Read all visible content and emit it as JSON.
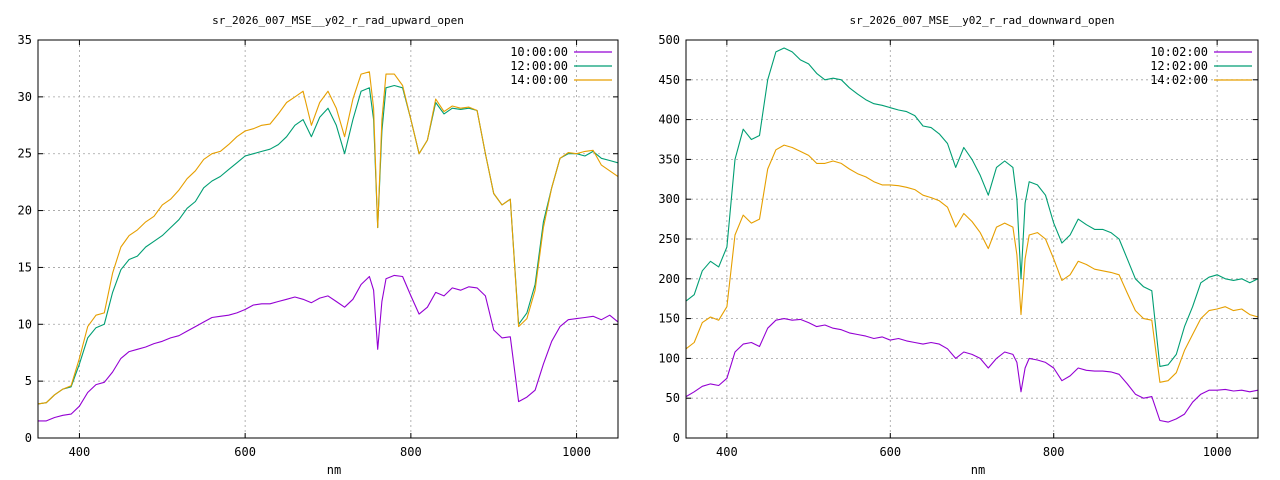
{
  "colors": {
    "series_10": "#9400d3",
    "series_12": "#009e73",
    "series_14": "#e69f00",
    "grid": "#a0a0a0"
  },
  "chart_data": [
    {
      "type": "line",
      "title": "sr_2026_007_MSE__y02_r_rad_upward_open",
      "xlabel": "nm",
      "ylabel": "",
      "xlim": [
        350,
        1050
      ],
      "ylim": [
        0,
        35
      ],
      "xticks": [
        400,
        600,
        800,
        1000
      ],
      "yticks": [
        0,
        5,
        10,
        15,
        20,
        25,
        30,
        35
      ],
      "grid": true,
      "legend_position": "top-right",
      "series": [
        {
          "name": "10:00:00",
          "color": "#9400d3",
          "x": [
            350,
            360,
            370,
            380,
            390,
            400,
            410,
            420,
            430,
            440,
            450,
            460,
            470,
            480,
            490,
            500,
            510,
            520,
            530,
            540,
            550,
            560,
            570,
            580,
            590,
            600,
            610,
            620,
            630,
            640,
            650,
            660,
            670,
            680,
            690,
            700,
            710,
            720,
            730,
            740,
            750,
            755,
            760,
            765,
            770,
            780,
            790,
            800,
            810,
            820,
            830,
            840,
            850,
            860,
            870,
            880,
            890,
            900,
            910,
            920,
            930,
            940,
            950,
            960,
            970,
            980,
            990,
            1000,
            1010,
            1020,
            1030,
            1040,
            1050
          ],
          "y": [
            1.5,
            1.5,
            1.8,
            2.0,
            2.1,
            2.8,
            4.0,
            4.7,
            4.9,
            5.8,
            7.0,
            7.6,
            7.8,
            8.0,
            8.3,
            8.5,
            8.8,
            9.0,
            9.4,
            9.8,
            10.2,
            10.6,
            10.7,
            10.8,
            11.0,
            11.3,
            11.7,
            11.8,
            11.8,
            12.0,
            12.2,
            12.4,
            12.2,
            11.9,
            12.3,
            12.5,
            12.0,
            11.5,
            12.2,
            13.5,
            14.2,
            13.0,
            7.8,
            12.0,
            14.0,
            14.3,
            14.2,
            12.5,
            10.9,
            11.5,
            12.8,
            12.5,
            13.2,
            13.0,
            13.3,
            13.2,
            12.5,
            9.5,
            8.8,
            8.9,
            3.2,
            3.6,
            4.2,
            6.5,
            8.5,
            9.8,
            10.4,
            10.5,
            10.6,
            10.7,
            10.4,
            10.8,
            10.2
          ]
        },
        {
          "name": "12:00:00",
          "color": "#009e73",
          "x": [
            350,
            360,
            370,
            380,
            390,
            400,
            410,
            420,
            430,
            440,
            450,
            460,
            470,
            480,
            490,
            500,
            510,
            520,
            530,
            540,
            550,
            560,
            570,
            580,
            590,
            600,
            610,
            620,
            630,
            640,
            650,
            660,
            670,
            680,
            690,
            700,
            710,
            720,
            730,
            740,
            750,
            755,
            760,
            765,
            770,
            780,
            790,
            800,
            810,
            820,
            830,
            840,
            850,
            860,
            870,
            880,
            890,
            900,
            910,
            920,
            930,
            940,
            950,
            960,
            970,
            980,
            990,
            1000,
            1010,
            1020,
            1030,
            1040,
            1050
          ],
          "y": [
            3.0,
            3.1,
            3.8,
            4.3,
            4.5,
            6.5,
            8.8,
            9.7,
            10.0,
            12.8,
            14.8,
            15.7,
            16.0,
            16.8,
            17.3,
            17.8,
            18.5,
            19.2,
            20.2,
            20.8,
            22.0,
            22.6,
            23.0,
            23.6,
            24.2,
            24.8,
            25.0,
            25.2,
            25.4,
            25.8,
            26.5,
            27.5,
            28.0,
            26.5,
            28.2,
            29.0,
            27.5,
            25.0,
            28.0,
            30.5,
            30.8,
            28.0,
            18.5,
            27.0,
            30.8,
            31.0,
            30.8,
            28.0,
            25.0,
            26.2,
            29.5,
            28.5,
            29.0,
            28.9,
            29.0,
            28.8,
            25.0,
            21.5,
            20.5,
            21.0,
            10.0,
            11.0,
            13.5,
            19.0,
            22.0,
            24.6,
            25.0,
            25.0,
            24.8,
            25.2,
            24.6,
            24.4,
            24.2
          ]
        },
        {
          "name": "14:00:00",
          "color": "#e69f00",
          "x": [
            350,
            360,
            370,
            380,
            390,
            400,
            410,
            420,
            430,
            440,
            450,
            460,
            470,
            480,
            490,
            500,
            510,
            520,
            530,
            540,
            550,
            560,
            570,
            580,
            590,
            600,
            610,
            620,
            630,
            640,
            650,
            660,
            670,
            680,
            690,
            700,
            710,
            720,
            730,
            740,
            750,
            755,
            760,
            765,
            770,
            780,
            790,
            800,
            810,
            820,
            830,
            840,
            850,
            860,
            870,
            880,
            890,
            900,
            910,
            920,
            930,
            940,
            950,
            960,
            970,
            980,
            990,
            1000,
            1010,
            1020,
            1030,
            1040,
            1050
          ],
          "y": [
            3.0,
            3.1,
            3.8,
            4.3,
            4.6,
            7.0,
            9.8,
            10.8,
            11.0,
            14.5,
            16.8,
            17.8,
            18.3,
            19.0,
            19.5,
            20.5,
            21.0,
            21.8,
            22.8,
            23.5,
            24.5,
            25.0,
            25.2,
            25.8,
            26.5,
            27.0,
            27.2,
            27.5,
            27.6,
            28.5,
            29.5,
            30.0,
            30.5,
            27.5,
            29.5,
            30.5,
            29.0,
            26.5,
            29.8,
            32.0,
            32.2,
            29.0,
            18.5,
            28.0,
            32.0,
            32.0,
            31.0,
            28.0,
            25.0,
            26.2,
            29.8,
            28.7,
            29.2,
            29.0,
            29.1,
            28.8,
            25.0,
            21.5,
            20.5,
            21.0,
            9.8,
            10.5,
            13.0,
            18.5,
            22.0,
            24.6,
            25.1,
            25.0,
            25.2,
            25.3,
            24.0,
            23.5,
            23.0
          ]
        }
      ]
    },
    {
      "type": "line",
      "title": "sr_2026_007_MSE__y02_r_rad_downward_open",
      "xlabel": "nm",
      "ylabel": "",
      "xlim": [
        350,
        1050
      ],
      "ylim": [
        0,
        500
      ],
      "xticks": [
        400,
        600,
        800,
        1000
      ],
      "yticks": [
        0,
        50,
        100,
        150,
        200,
        250,
        300,
        350,
        400,
        450,
        500
      ],
      "grid": true,
      "legend_position": "top-right",
      "series": [
        {
          "name": "10:02:00",
          "color": "#9400d3",
          "x": [
            350,
            360,
            370,
            380,
            390,
            400,
            410,
            420,
            430,
            440,
            450,
            460,
            470,
            480,
            490,
            500,
            510,
            520,
            530,
            540,
            550,
            560,
            570,
            580,
            590,
            600,
            610,
            620,
            630,
            640,
            650,
            660,
            670,
            680,
            690,
            700,
            710,
            720,
            730,
            740,
            750,
            755,
            760,
            765,
            770,
            780,
            790,
            800,
            810,
            820,
            830,
            840,
            850,
            860,
            870,
            880,
            890,
            900,
            910,
            920,
            930,
            940,
            950,
            960,
            970,
            980,
            990,
            1000,
            1010,
            1020,
            1030,
            1040,
            1050
          ],
          "y": [
            52,
            58,
            65,
            68,
            66,
            75,
            108,
            118,
            120,
            115,
            138,
            148,
            150,
            148,
            149,
            145,
            140,
            142,
            138,
            136,
            132,
            130,
            128,
            125,
            127,
            123,
            125,
            122,
            120,
            118,
            120,
            118,
            112,
            100,
            108,
            105,
            100,
            88,
            100,
            108,
            105,
            95,
            58,
            88,
            100,
            98,
            95,
            88,
            72,
            78,
            88,
            85,
            84,
            84,
            83,
            80,
            68,
            55,
            50,
            52,
            22,
            20,
            24,
            30,
            45,
            55,
            60,
            60,
            61,
            59,
            60,
            58,
            60
          ]
        },
        {
          "name": "12:02:00",
          "color": "#009e73",
          "x": [
            350,
            360,
            370,
            380,
            390,
            400,
            410,
            420,
            430,
            440,
            450,
            460,
            470,
            480,
            490,
            500,
            510,
            520,
            530,
            540,
            550,
            560,
            570,
            580,
            590,
            600,
            610,
            620,
            630,
            640,
            650,
            660,
            670,
            680,
            690,
            700,
            710,
            720,
            730,
            740,
            750,
            755,
            760,
            765,
            770,
            780,
            790,
            800,
            810,
            820,
            830,
            840,
            850,
            860,
            870,
            880,
            890,
            900,
            910,
            920,
            930,
            940,
            950,
            960,
            970,
            980,
            990,
            1000,
            1010,
            1020,
            1030,
            1040,
            1050
          ],
          "y": [
            172,
            180,
            210,
            222,
            215,
            240,
            350,
            388,
            375,
            380,
            450,
            485,
            490,
            485,
            475,
            470,
            458,
            450,
            452,
            450,
            440,
            432,
            425,
            420,
            418,
            415,
            412,
            410,
            405,
            392,
            390,
            382,
            370,
            340,
            365,
            350,
            330,
            305,
            340,
            348,
            340,
            300,
            200,
            295,
            322,
            318,
            305,
            270,
            245,
            255,
            275,
            268,
            262,
            262,
            258,
            250,
            225,
            200,
            190,
            185,
            90,
            92,
            105,
            140,
            165,
            195,
            202,
            205,
            200,
            198,
            200,
            195,
            200
          ]
        },
        {
          "name": "14:02:00",
          "color": "#e69f00",
          "x": [
            350,
            360,
            370,
            380,
            390,
            400,
            410,
            420,
            430,
            440,
            450,
            460,
            470,
            480,
            490,
            500,
            510,
            520,
            530,
            540,
            550,
            560,
            570,
            580,
            590,
            600,
            610,
            620,
            630,
            640,
            650,
            660,
            670,
            680,
            690,
            700,
            710,
            720,
            730,
            740,
            750,
            755,
            760,
            765,
            770,
            780,
            790,
            800,
            810,
            820,
            830,
            840,
            850,
            860,
            870,
            880,
            890,
            900,
            910,
            920,
            930,
            940,
            950,
            960,
            970,
            980,
            990,
            1000,
            1010,
            1020,
            1030,
            1040,
            1050
          ],
          "y": [
            112,
            120,
            145,
            152,
            148,
            165,
            255,
            280,
            270,
            275,
            338,
            362,
            368,
            365,
            360,
            355,
            345,
            345,
            348,
            345,
            338,
            332,
            328,
            322,
            318,
            318,
            317,
            315,
            312,
            305,
            302,
            298,
            290,
            265,
            282,
            272,
            258,
            238,
            265,
            270,
            265,
            230,
            155,
            225,
            255,
            258,
            250,
            225,
            198,
            205,
            222,
            218,
            212,
            210,
            208,
            205,
            182,
            160,
            150,
            148,
            70,
            72,
            82,
            110,
            130,
            150,
            160,
            162,
            165,
            160,
            162,
            155,
            152
          ]
        }
      ]
    }
  ]
}
